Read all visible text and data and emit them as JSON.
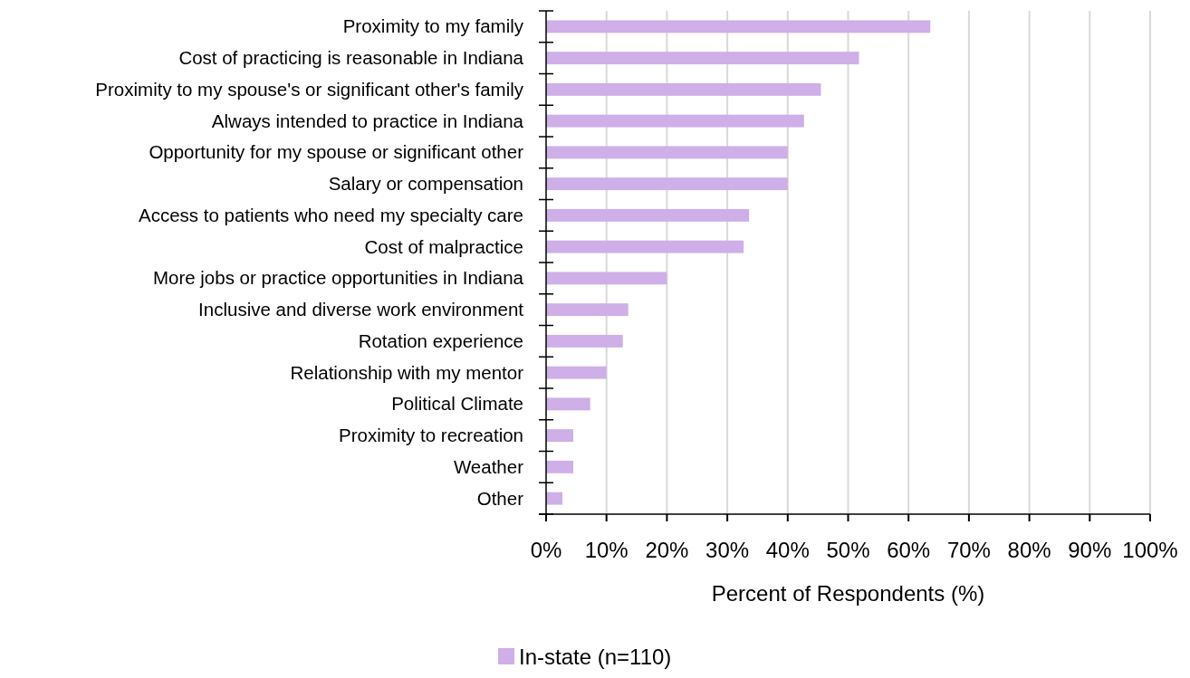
{
  "chart_data": {
    "type": "bar",
    "orientation": "horizontal",
    "xlabel": "Percent of Respondents (%)",
    "categories": [
      "Proximity to my family",
      "Cost of practicing is reasonable in Indiana",
      "Proximity to my spouse's or significant other's family",
      "Always intended to practice in Indiana",
      "Opportunity for my spouse or significant other",
      "Salary or compensation",
      "Access to patients who need my specialty care",
      "Cost of malpractice",
      "More jobs or practice opportunities in Indiana",
      "Inclusive and diverse work environment",
      "Rotation experience",
      "Relationship with my mentor",
      "Political Climate",
      "Proximity to recreation",
      "Weather",
      "Other"
    ],
    "series": [
      {
        "name": "In-state (n=110)",
        "color": "#cfafe7",
        "values": [
          63.6,
          51.8,
          45.5,
          42.7,
          40.0,
          40.0,
          33.6,
          32.7,
          20.0,
          13.6,
          12.7,
          10.0,
          7.3,
          4.5,
          4.5,
          2.7
        ]
      }
    ],
    "xlim": [
      0,
      100
    ],
    "xticks": [
      {
        "value": 0,
        "label": "0%"
      },
      {
        "value": 10,
        "label": "10%"
      },
      {
        "value": 20,
        "label": "20%"
      },
      {
        "value": 30,
        "label": "30%"
      },
      {
        "value": 40,
        "label": "40%"
      },
      {
        "value": 50,
        "label": "50%"
      },
      {
        "value": 60,
        "label": "60%"
      },
      {
        "value": 70,
        "label": "70%"
      },
      {
        "value": 80,
        "label": "80%"
      },
      {
        "value": 90,
        "label": "90%"
      },
      {
        "value": 100,
        "label": "100%"
      }
    ],
    "grid": "x",
    "legend": "bottom"
  }
}
